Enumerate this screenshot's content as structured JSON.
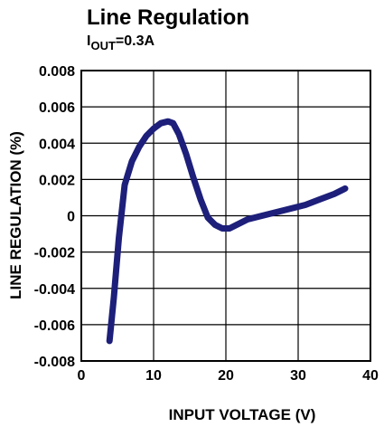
{
  "chart_data": {
    "type": "line",
    "title": "Line Regulation",
    "subtitle": {
      "prefix": "I",
      "subscript": "OUT",
      "suffix": "=0.3A"
    },
    "xlabel": "INPUT VOLTAGE (V)",
    "ylabel": "LINE REGULATION (%)",
    "xlim": [
      0,
      40
    ],
    "ylim": [
      -0.008,
      0.008
    ],
    "xticks": [
      0,
      10,
      20,
      30,
      40
    ],
    "xtick_labels": [
      "0",
      "10",
      "20",
      "30",
      "40"
    ],
    "yticks": [
      0.008,
      0.006,
      0.004,
      0.002,
      0,
      -0.002,
      -0.004,
      -0.006,
      -0.008
    ],
    "ytick_labels": [
      "0.008",
      "0.006",
      "0.004",
      "0.002",
      "0",
      "-0.002",
      "-0.004",
      "-0.006",
      "-0.008"
    ],
    "grid": true,
    "series_color": "#1d1f7a",
    "series": [
      {
        "x": [
          3.9,
          4.5,
          5.2,
          6.0,
          7.0,
          8.0,
          9.0,
          10.0,
          11.0,
          12.0,
          12.7,
          13.5,
          14.5,
          15.5,
          16.5,
          17.5,
          18.5,
          19.5,
          20.5,
          21.5,
          23.0,
          25.0,
          27.0,
          29.0,
          31.0,
          33.0,
          35.0,
          36.5
        ],
        "y": [
          -0.0069,
          -0.0045,
          -0.0012,
          0.0017,
          0.003,
          0.0038,
          0.0044,
          0.0048,
          0.0051,
          0.0052,
          0.0051,
          0.0045,
          0.0034,
          0.0021,
          0.0009,
          -0.0001,
          -0.0005,
          -0.0007,
          -0.0007,
          -0.0005,
          -0.0002,
          0.0,
          0.0002,
          0.0004,
          0.0006,
          0.0009,
          0.0012,
          0.0015
        ]
      }
    ]
  }
}
